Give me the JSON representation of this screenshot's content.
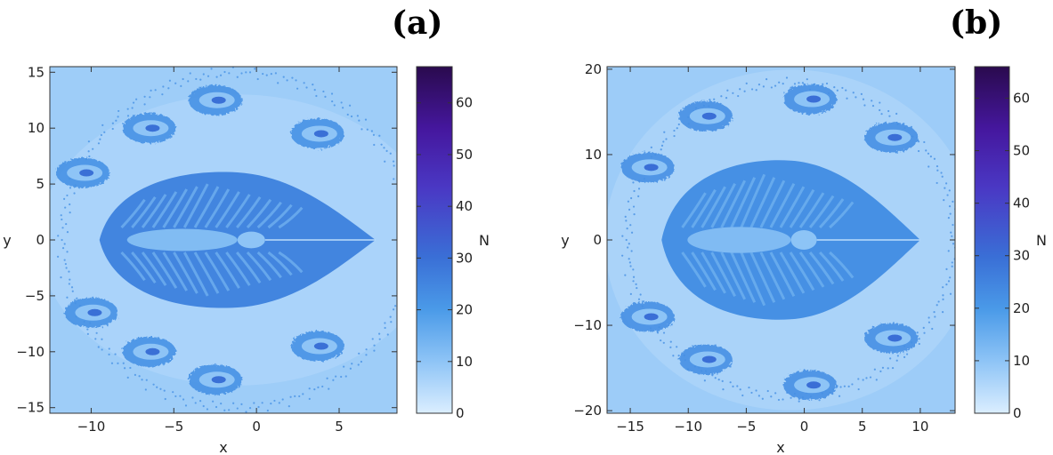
{
  "chart_data": [
    {
      "type": "heatmap",
      "panel_label": "(a)",
      "xlabel": "x",
      "ylabel": "y",
      "colorbar_label": "N",
      "xlim": [
        -12.5,
        8.5
      ],
      "ylim": [
        -15.5,
        15.5
      ],
      "x_ticks": [
        -10,
        -5,
        0,
        5
      ],
      "x_tick_labels": [
        "−10",
        "−5",
        "0",
        "5"
      ],
      "y_ticks": [
        -15,
        -10,
        -5,
        0,
        5,
        10,
        15
      ],
      "y_tick_labels": [
        "−15",
        "−10",
        "−5",
        "0",
        "5",
        "10",
        "15"
      ],
      "colorbar_range": [
        0,
        67
      ],
      "colorbar_ticks": [
        0,
        10,
        20,
        30,
        40,
        50,
        60
      ],
      "colorbar_tick_labels": [
        "0",
        "10",
        "20",
        "30",
        "40",
        "50",
        "60"
      ],
      "structure": {
        "central_region": {
          "x_range": [
            -9.5,
            7.2
          ],
          "y_range": [
            -6.2,
            6.2
          ],
          "approx_N": 25
        },
        "lobes": [
          {
            "x": -2.5,
            "y": 12.5
          },
          {
            "x": -6.5,
            "y": 10
          },
          {
            "x": 3.7,
            "y": 9.5
          },
          {
            "x": -10.5,
            "y": 6
          },
          {
            "x": -10,
            "y": -6.5
          },
          {
            "x": -6.5,
            "y": -10
          },
          {
            "x": 3.7,
            "y": -9.5
          },
          {
            "x": -2.5,
            "y": -12.5
          }
        ],
        "background_N": 8
      }
    },
    {
      "type": "heatmap",
      "panel_label": "(b)",
      "xlabel": "x",
      "ylabel": "y",
      "colorbar_label": "N",
      "xlim": [
        -17,
        13
      ],
      "ylim": [
        -20.3,
        20.3
      ],
      "x_ticks": [
        -15,
        -10,
        -5,
        0,
        5,
        10
      ],
      "x_tick_labels": [
        "−15",
        "−10",
        "−5",
        "0",
        "5",
        "10"
      ],
      "y_ticks": [
        -20,
        -10,
        0,
        10,
        20
      ],
      "y_tick_labels": [
        "−20",
        "−10",
        "0",
        "10",
        "20"
      ],
      "colorbar_range": [
        0,
        66
      ],
      "colorbar_ticks": [
        0,
        10,
        20,
        30,
        40,
        50,
        60
      ],
      "colorbar_tick_labels": [
        "0",
        "10",
        "20",
        "30",
        "40",
        "50",
        "60"
      ],
      "structure": {
        "central_region": {
          "x_range": [
            -12.3,
            10
          ],
          "y_range": [
            -9.5,
            9.5
          ],
          "approx_N": 22
        },
        "lobes": [
          {
            "x": 0.5,
            "y": 16.5
          },
          {
            "x": -8.5,
            "y": 14.5
          },
          {
            "x": 7.5,
            "y": 12
          },
          {
            "x": -13.5,
            "y": 8.5
          },
          {
            "x": -13.5,
            "y": -9
          },
          {
            "x": -8.5,
            "y": -14
          },
          {
            "x": 7.5,
            "y": -11.5
          },
          {
            "x": 0.5,
            "y": -17
          }
        ],
        "background_N": 8
      }
    }
  ]
}
